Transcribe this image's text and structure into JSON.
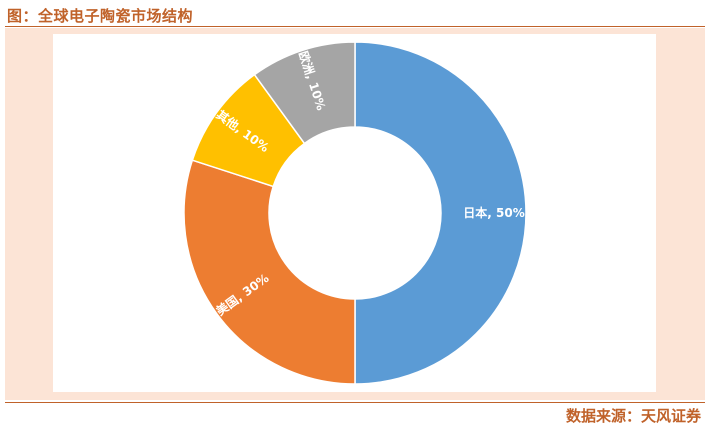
{
  "header": {
    "title": "图：全球电子陶瓷市场结构"
  },
  "footer": {
    "source": "数据来源：天风证券"
  },
  "chart_data": {
    "type": "pie",
    "variant": "donut",
    "title": "",
    "start": "top, clockwise",
    "slices": [
      {
        "label": "日本",
        "value": 50,
        "text": "日本, 50%",
        "color": "#5b9bd5"
      },
      {
        "label": "美国",
        "value": 30,
        "text": "美国, 30%",
        "color": "#ed7d31"
      },
      {
        "label": "其他",
        "value": 10,
        "text": "其他, 10%",
        "color": "#ffc000"
      },
      {
        "label": "欧洲",
        "value": 10,
        "text": "欧洲, 10%",
        "color": "#a5a5a5"
      }
    ]
  }
}
